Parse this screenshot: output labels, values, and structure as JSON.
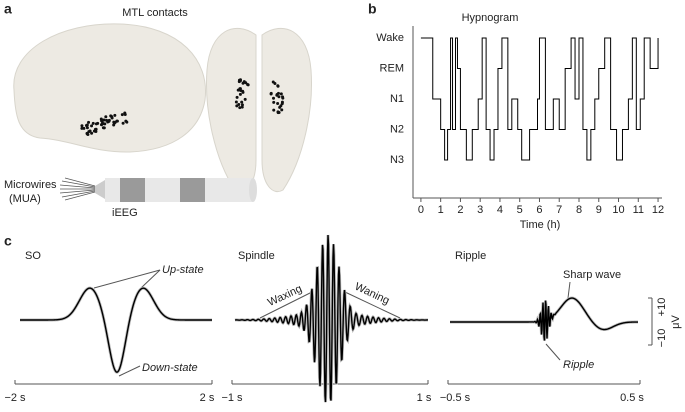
{
  "panels": {
    "a": {
      "label": "a",
      "title": "MTL contacts",
      "microwires": [
        "Microwires",
        "(MUA)"
      ],
      "ieeg": "iEEG"
    },
    "b": {
      "label": "b"
    },
    "c": {
      "label": "c",
      "so": {
        "title": "SO",
        "up": "Up-state",
        "down": "Down-state",
        "start": "−2 s",
        "end": "2 s"
      },
      "spindle": {
        "title": "Spindle",
        "waxing": "Waxing",
        "waning": "Waning",
        "start": "−1 s",
        "end": "1 s"
      },
      "ripple": {
        "title": "Ripple",
        "sharp": "Sharp wave",
        "ripple": "Ripple",
        "start": "−0.5 s",
        "end": "0.5 s"
      },
      "scale": {
        "plus": "+10",
        "minus": "−10",
        "unit": "μV"
      }
    }
  },
  "chart_data": {
    "type": "line",
    "title": "Hypnogram",
    "xlabel": "Time (h)",
    "y_categories": [
      "Wake",
      "REM",
      "N1",
      "N2",
      "N3"
    ],
    "xlim": [
      -0.4,
      12.2
    ],
    "xticks": [
      0,
      1,
      2,
      3,
      4,
      5,
      6,
      7,
      8,
      9,
      10,
      11,
      12
    ],
    "color": "#000000",
    "x": [
      0,
      0.6,
      1.0,
      1.2,
      1.35,
      1.5,
      1.6,
      1.75,
      1.85,
      2.0,
      2.3,
      2.6,
      2.9,
      3.1,
      3.3,
      3.5,
      3.7,
      3.9,
      4.1,
      4.4,
      4.6,
      4.9,
      5.1,
      5.5,
      5.9,
      6.0,
      6.3,
      6.7,
      7.0,
      7.3,
      7.6,
      7.8,
      8.0,
      8.2,
      8.4,
      8.6,
      8.8,
      9.0,
      9.3,
      9.6,
      9.9,
      10.2,
      10.5,
      10.7,
      10.9,
      11.1,
      11.3,
      11.6,
      12
    ],
    "values": [
      "Wake",
      "N1",
      "N2",
      "N3",
      "N2",
      "Wake",
      "N2",
      "Wake",
      "REM",
      "N2",
      "N3",
      "N2",
      "N1",
      "Wake",
      "N2",
      "N3",
      "N2",
      "REM",
      "Wake",
      "N2",
      "N1",
      "N2",
      "N3",
      "N2",
      "N1",
      "Wake",
      "N2",
      "N1",
      "N2",
      "REM",
      "Wake",
      "N1",
      "Wake",
      "N2",
      "N3",
      "N2",
      "N1",
      "REM",
      "Wake",
      "N2",
      "N3",
      "N2",
      "N1",
      "Wake",
      "N2",
      "N1",
      "Wake",
      "REM",
      "Wake"
    ]
  }
}
